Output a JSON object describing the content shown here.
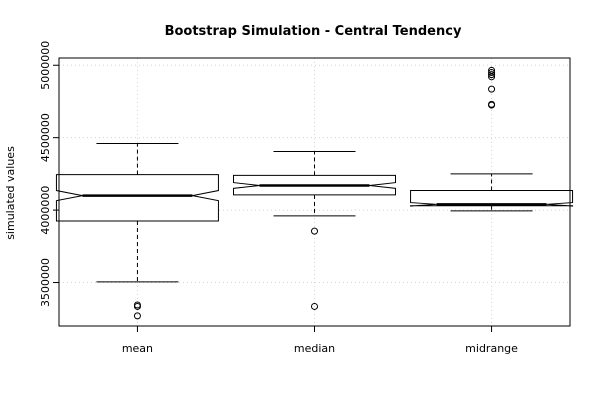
{
  "chart_data": {
    "type": "box",
    "title": "Bootstrap Simulation - Central Tendency",
    "xlabel": "",
    "ylabel": "simulated values",
    "categories": [
      "mean",
      "median",
      "midrange"
    ],
    "ylim": [
      3200000,
      5050000
    ],
    "yticks": [
      3500000,
      4000000,
      4500000,
      5000000
    ],
    "ytick_labels": [
      "3500000",
      "4000000",
      "4500000",
      "5000000"
    ],
    "grid": true,
    "notched": true,
    "series": [
      {
        "category": "mean",
        "whisker_low": 3505000,
        "q1": 3925000,
        "median": 4100000,
        "q3": 4245000,
        "whisker_high": 4460000,
        "notch_low": 4065000,
        "notch_high": 4135000,
        "outliers": [
          3345000,
          3335000,
          3270000
        ]
      },
      {
        "category": "median",
        "whisker_low": 3960000,
        "q1": 4105000,
        "median": 4170000,
        "q3": 4240000,
        "whisker_high": 4405000,
        "notch_low": 4150000,
        "notch_high": 4190000,
        "outliers": [
          3855000,
          3335000
        ]
      },
      {
        "category": "midrange",
        "whisker_low": 3995000,
        "q1": 4030000,
        "median": 4040000,
        "q3": 4135000,
        "whisker_high": 4250000,
        "notch_low": 4028000,
        "notch_high": 4052000,
        "outliers": [
          4965000,
          4950000,
          4935000,
          4920000,
          4835000,
          4730000,
          4725000
        ]
      }
    ]
  }
}
